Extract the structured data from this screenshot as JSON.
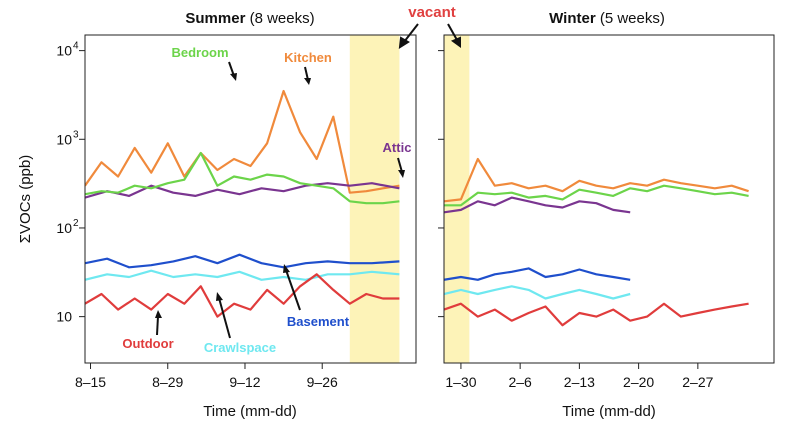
{
  "chart_data": {
    "type": "line",
    "ylabel": "ΣVOCs (ppb)",
    "yscale": "log",
    "ylim": [
      3,
      15000
    ],
    "ytick_labels": [
      "10",
      "10",
      "10",
      "10"
    ],
    "ytick_sups": [
      "",
      "2",
      "3",
      "4"
    ],
    "ytick_values": [
      10,
      100,
      1000,
      10000
    ],
    "grid": false,
    "legend": "none (series labeled inline)",
    "vacant_label": "vacant",
    "series_colors": {
      "Bedroom": "#6cd44a",
      "Kitchen": "#f08a3c",
      "Attic": "#7a3590",
      "Basement": "#1f4fcc",
      "Crawlspace": "#6fe8f0",
      "Outdoor": "#e03c3c"
    },
    "shade_color": "#fdf3b8",
    "panels": [
      {
        "title_bold": "Summer",
        "title_rest": " (8 weeks)",
        "xlabel": "Time (mm-dd)",
        "xlim": [
          0,
          60
        ],
        "xticks": [
          {
            "label": "8–15",
            "x": 1
          },
          {
            "label": "8–29",
            "x": 15
          },
          {
            "label": "9–12",
            "x": 29
          },
          {
            "label": "9–26",
            "x": 43
          }
        ],
        "vacant_range": [
          48,
          57
        ],
        "series": [
          {
            "name": "Kitchen",
            "x": [
              0,
              3,
              6,
              9,
              12,
              15,
              18,
              21,
              24,
              27,
              30,
              33,
              36,
              39,
              42,
              45,
              48,
              51,
              54,
              57
            ],
            "values": [
              300,
              550,
              380,
              800,
              420,
              900,
              380,
              700,
              450,
              600,
              500,
              900,
              3500,
              1200,
              600,
              1800,
              250,
              260,
              280,
              300
            ]
          },
          {
            "name": "Attic",
            "x": [
              0,
              4,
              8,
              12,
              16,
              20,
              24,
              28,
              32,
              36,
              40,
              44,
              48,
              52,
              57
            ],
            "values": [
              220,
              260,
              230,
              300,
              250,
              230,
              270,
              240,
              280,
              260,
              300,
              320,
              300,
              320,
              280
            ]
          },
          {
            "name": "Bedroom",
            "x": [
              0,
              3,
              6,
              9,
              12,
              15,
              18,
              21,
              24,
              27,
              30,
              33,
              36,
              39,
              42,
              45,
              48,
              51,
              54,
              57
            ],
            "values": [
              240,
              260,
              250,
              300,
              280,
              320,
              350,
              700,
              300,
              380,
              350,
              400,
              380,
              320,
              300,
              280,
              200,
              190,
              190,
              200
            ]
          },
          {
            "name": "Basement",
            "x": [
              0,
              4,
              8,
              12,
              16,
              20,
              24,
              28,
              32,
              36,
              40,
              44,
              48,
              52,
              57
            ],
            "values": [
              40,
              45,
              36,
              38,
              42,
              48,
              40,
              50,
              40,
              36,
              40,
              42,
              40,
              40,
              42
            ]
          },
          {
            "name": "Crawlspace",
            "x": [
              0,
              4,
              8,
              12,
              16,
              20,
              24,
              28,
              32,
              36,
              40,
              44,
              48,
              52,
              57
            ],
            "values": [
              26,
              30,
              28,
              33,
              28,
              30,
              28,
              32,
              26,
              28,
              26,
              30,
              30,
              32,
              30
            ]
          },
          {
            "name": "Outdoor",
            "x": [
              0,
              3,
              6,
              9,
              12,
              15,
              18,
              21,
              24,
              27,
              30,
              33,
              36,
              39,
              42,
              45,
              48,
              51,
              54,
              57
            ],
            "values": [
              14,
              18,
              12,
              16,
              12,
              18,
              14,
              22,
              10,
              14,
              12,
              20,
              14,
              22,
              30,
              20,
              14,
              18,
              16,
              16
            ]
          }
        ]
      },
      {
        "title_bold": "Winter",
        "title_rest": " (5 weeks)",
        "xlabel": "Time (mm-dd)",
        "xlim": [
          0,
          39
        ],
        "xticks": [
          {
            "label": "1–30",
            "x": 2
          },
          {
            "label": "2–6",
            "x": 9
          },
          {
            "label": "2–13",
            "x": 16
          },
          {
            "label": "2–20",
            "x": 23
          },
          {
            "label": "2–27",
            "x": 30
          }
        ],
        "vacant_range": [
          0,
          3
        ],
        "series": [
          {
            "name": "Kitchen",
            "x": [
              0,
              2,
              4,
              6,
              8,
              10,
              12,
              14,
              16,
              18,
              20,
              22,
              24,
              26,
              28,
              30,
              32,
              34,
              36
            ],
            "values": [
              200,
              210,
              600,
              300,
              320,
              280,
              300,
              260,
              340,
              300,
              280,
              320,
              300,
              350,
              320,
              300,
              280,
              300,
              260
            ]
          },
          {
            "name": "Bedroom",
            "x": [
              0,
              2,
              4,
              6,
              8,
              10,
              12,
              14,
              16,
              18,
              20,
              22,
              24,
              26,
              28,
              30,
              32,
              34,
              36
            ],
            "values": [
              180,
              180,
              250,
              240,
              250,
              220,
              230,
              210,
              270,
              250,
              230,
              280,
              260,
              300,
              280,
              260,
              240,
              250,
              230
            ]
          },
          {
            "name": "Attic",
            "x": [
              0,
              2,
              4,
              6,
              8,
              10,
              12,
              14,
              16,
              18,
              20,
              22
            ],
            "values": [
              150,
              160,
              200,
              180,
              220,
              200,
              180,
              170,
              200,
              190,
              160,
              150
            ]
          },
          {
            "name": "Basement",
            "x": [
              0,
              2,
              4,
              6,
              8,
              10,
              12,
              14,
              16,
              18,
              20,
              22
            ],
            "values": [
              26,
              28,
              26,
              30,
              32,
              35,
              28,
              30,
              34,
              30,
              28,
              26
            ]
          },
          {
            "name": "Crawlspace",
            "x": [
              0,
              2,
              4,
              6,
              8,
              10,
              12,
              14,
              16,
              18,
              20,
              22
            ],
            "values": [
              18,
              20,
              18,
              20,
              22,
              20,
              16,
              18,
              20,
              18,
              16,
              18
            ]
          },
          {
            "name": "Outdoor",
            "x": [
              0,
              2,
              4,
              6,
              8,
              10,
              12,
              14,
              16,
              18,
              20,
              22,
              24,
              26,
              28,
              30,
              32,
              34,
              36
            ],
            "values": [
              12,
              14,
              10,
              12,
              9,
              11,
              13,
              8,
              11,
              10,
              12,
              9,
              10,
              14,
              10,
              11,
              12,
              13,
              14
            ]
          }
        ]
      }
    ],
    "annotations": [
      {
        "text": "Bedroom",
        "series": "Bedroom"
      },
      {
        "text": "Kitchen",
        "series": "Kitchen"
      },
      {
        "text": "Attic",
        "series": "Attic"
      },
      {
        "text": "Basement",
        "series": "Basement"
      },
      {
        "text": "Crawlspace",
        "series": "Crawlspace"
      },
      {
        "text": "Outdoor",
        "series": "Outdoor"
      }
    ]
  }
}
